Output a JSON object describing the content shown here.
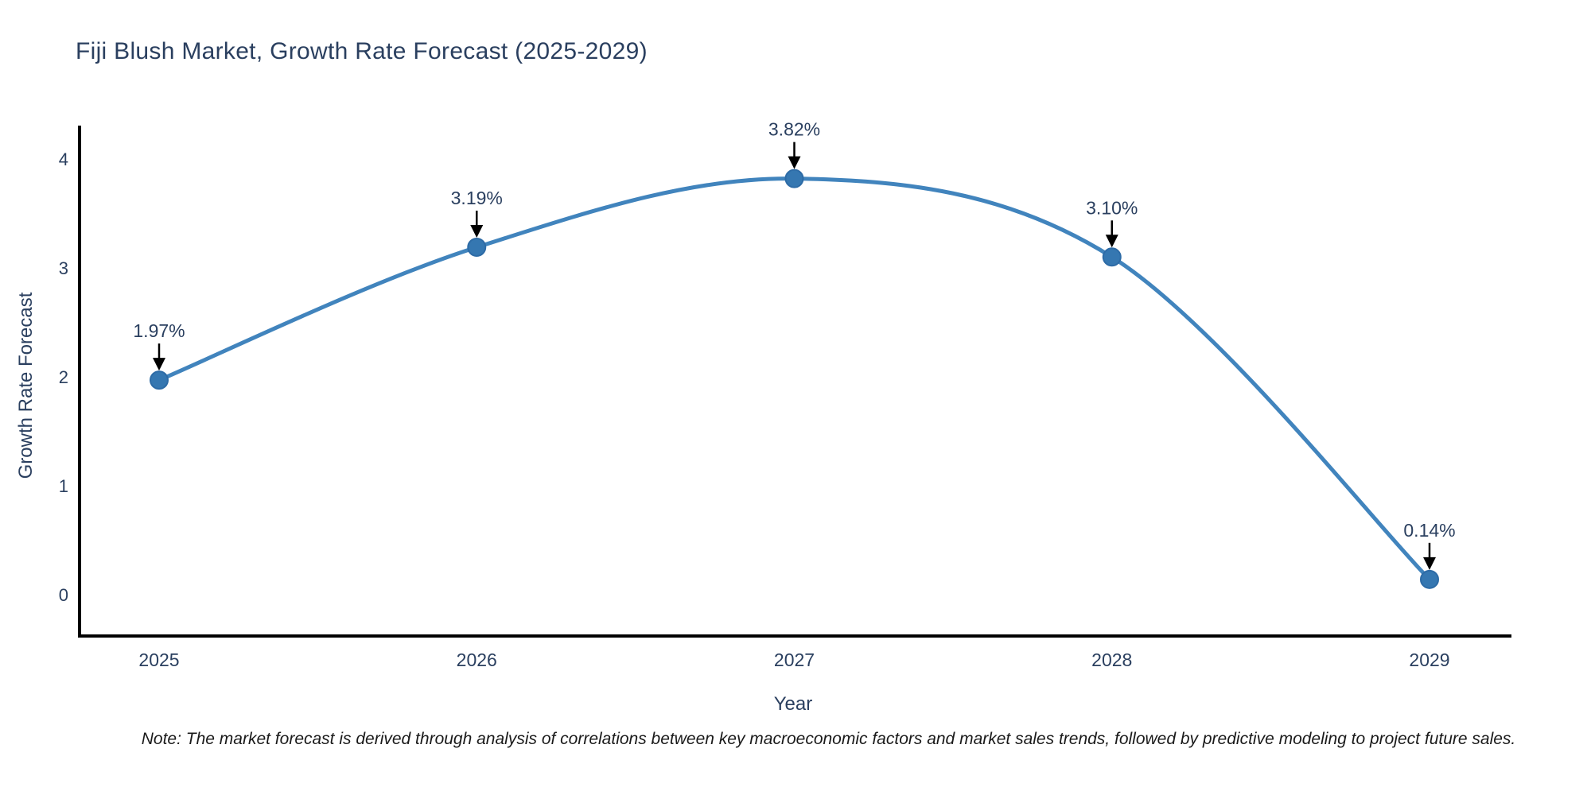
{
  "title": "Fiji Blush Market, Growth Rate Forecast (2025-2029)",
  "note": "Note: The market forecast is derived through analysis of correlations between key macroeconomic factors and market sales trends, followed by predictive modeling to project future sales.",
  "chart_data": {
    "type": "line",
    "title": "Fiji Blush Market, Growth Rate Forecast (2025-2029)",
    "xlabel": "Year",
    "ylabel": "Growth Rate Forecast",
    "categories": [
      "2025",
      "2026",
      "2027",
      "2028",
      "2029"
    ],
    "values": [
      1.97,
      3.19,
      3.82,
      3.1,
      0.14
    ],
    "point_labels": [
      "1.97%",
      "3.19%",
      "3.82%",
      "3.10%",
      "0.14%"
    ],
    "yticks": [
      0,
      1,
      2,
      3,
      4
    ],
    "ylim": [
      -0.38,
      4.3
    ],
    "xlim": [
      2024.75,
      2029.26
    ],
    "grid": false,
    "legend": "none",
    "line_smoothing": "spline",
    "colors": {
      "line": "#4184bd",
      "marker": "#3577b1",
      "marker_edge": "#2d6ba6",
      "axis": "#000000",
      "text": "#2a3f5f",
      "annotation_arrow": "#000000"
    }
  }
}
